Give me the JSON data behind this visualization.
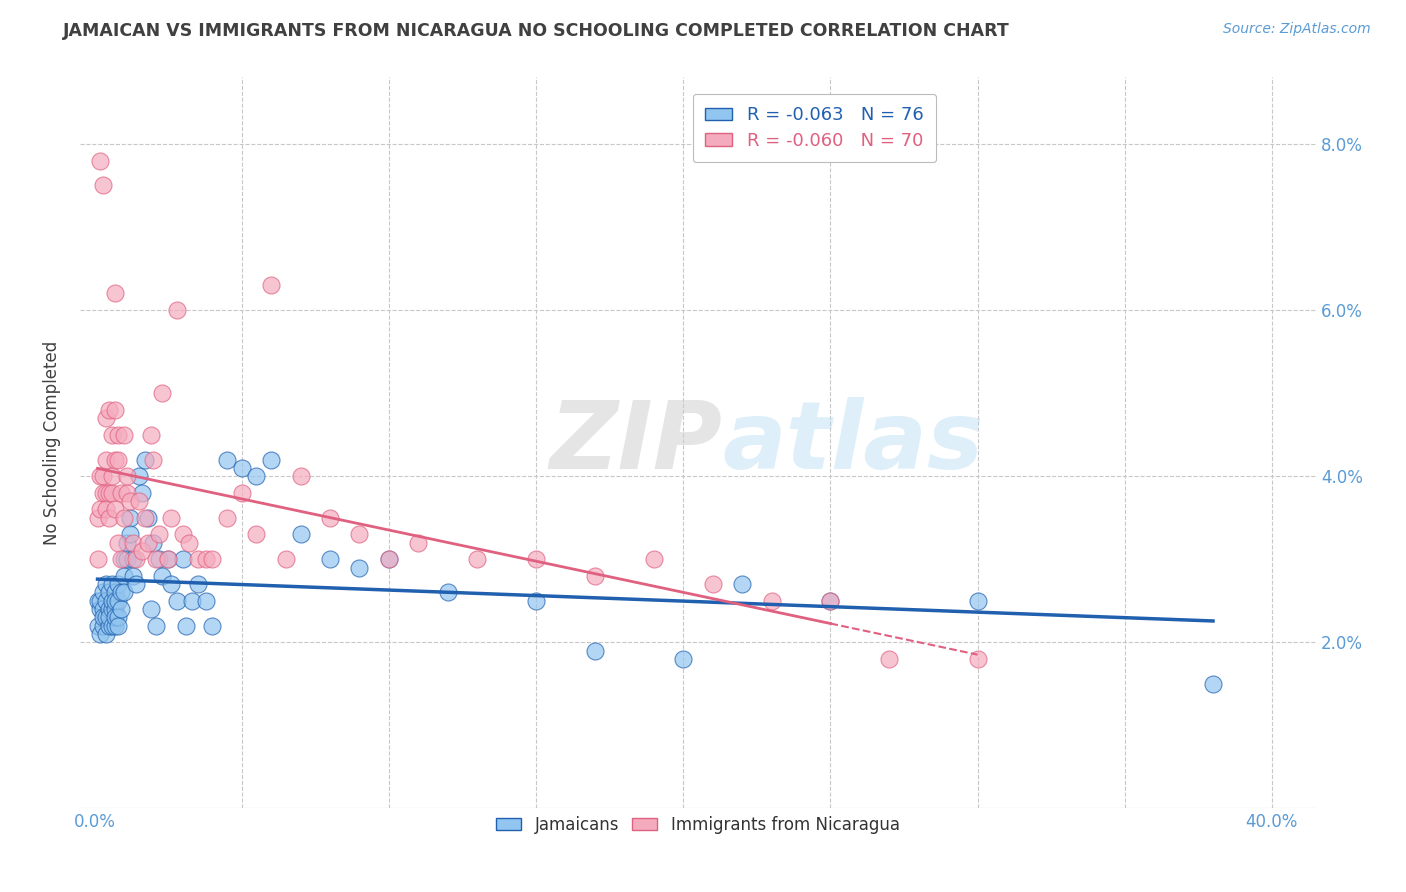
{
  "title": "JAMAICAN VS IMMIGRANTS FROM NICARAGUA NO SCHOOLING COMPLETED CORRELATION CHART",
  "source": "Source: ZipAtlas.com",
  "xlabel_ticks": [
    0.0,
    0.05,
    0.1,
    0.15,
    0.2,
    0.25,
    0.3,
    0.35,
    0.4
  ],
  "xlabel_labels_show": [
    "0.0%",
    "",
    "",
    "",
    "",
    "",
    "",
    "",
    "40.0%"
  ],
  "ylabel": "No Schooling Completed",
  "ylabel_labels_right": [
    "2.0%",
    "4.0%",
    "6.0%",
    "8.0%"
  ],
  "ylim": [
    0.0,
    0.088
  ],
  "xlim": [
    -0.005,
    0.415
  ],
  "watermark": "ZIPatlas",
  "legend_blue_R": "-0.063",
  "legend_blue_N": "76",
  "legend_pink_R": "-0.060",
  "legend_pink_N": "70",
  "blue_color": "#92C5F0",
  "pink_color": "#F5ABBE",
  "blue_line_color": "#2060AE",
  "pink_line_color": "#E06080",
  "grid_color": "#C8C8C8",
  "title_color": "#404040",
  "axis_label_color": "#5B9BD5",
  "blue_x": [
    0.001,
    0.001,
    0.002,
    0.002,
    0.002,
    0.003,
    0.003,
    0.003,
    0.003,
    0.004,
    0.004,
    0.004,
    0.004,
    0.005,
    0.005,
    0.005,
    0.005,
    0.006,
    0.006,
    0.006,
    0.006,
    0.007,
    0.007,
    0.007,
    0.007,
    0.007,
    0.008,
    0.008,
    0.008,
    0.008,
    0.009,
    0.009,
    0.01,
    0.01,
    0.01,
    0.011,
    0.011,
    0.012,
    0.012,
    0.013,
    0.013,
    0.014,
    0.015,
    0.016,
    0.017,
    0.018,
    0.019,
    0.02,
    0.021,
    0.022,
    0.023,
    0.025,
    0.026,
    0.028,
    0.03,
    0.031,
    0.033,
    0.035,
    0.038,
    0.04,
    0.045,
    0.05,
    0.055,
    0.06,
    0.07,
    0.08,
    0.09,
    0.1,
    0.12,
    0.15,
    0.17,
    0.2,
    0.22,
    0.25,
    0.3,
    0.38
  ],
  "blue_y": [
    0.025,
    0.022,
    0.024,
    0.021,
    0.025,
    0.022,
    0.024,
    0.026,
    0.023,
    0.021,
    0.023,
    0.025,
    0.027,
    0.024,
    0.022,
    0.026,
    0.023,
    0.022,
    0.024,
    0.025,
    0.027,
    0.024,
    0.022,
    0.026,
    0.023,
    0.025,
    0.025,
    0.023,
    0.027,
    0.022,
    0.024,
    0.026,
    0.03,
    0.028,
    0.026,
    0.032,
    0.03,
    0.035,
    0.033,
    0.03,
    0.028,
    0.027,
    0.04,
    0.038,
    0.042,
    0.035,
    0.024,
    0.032,
    0.022,
    0.03,
    0.028,
    0.03,
    0.027,
    0.025,
    0.03,
    0.022,
    0.025,
    0.027,
    0.025,
    0.022,
    0.042,
    0.041,
    0.04,
    0.042,
    0.033,
    0.03,
    0.029,
    0.03,
    0.026,
    0.025,
    0.019,
    0.018,
    0.027,
    0.025,
    0.025,
    0.015
  ],
  "pink_x": [
    0.001,
    0.001,
    0.002,
    0.002,
    0.002,
    0.003,
    0.003,
    0.003,
    0.004,
    0.004,
    0.004,
    0.004,
    0.005,
    0.005,
    0.005,
    0.006,
    0.006,
    0.006,
    0.007,
    0.007,
    0.007,
    0.007,
    0.008,
    0.008,
    0.008,
    0.009,
    0.009,
    0.01,
    0.01,
    0.011,
    0.011,
    0.012,
    0.013,
    0.014,
    0.015,
    0.016,
    0.017,
    0.018,
    0.019,
    0.02,
    0.021,
    0.022,
    0.023,
    0.025,
    0.026,
    0.028,
    0.03,
    0.032,
    0.035,
    0.038,
    0.04,
    0.045,
    0.05,
    0.055,
    0.06,
    0.065,
    0.07,
    0.08,
    0.09,
    0.1,
    0.11,
    0.13,
    0.15,
    0.17,
    0.19,
    0.21,
    0.23,
    0.25,
    0.27,
    0.3
  ],
  "pink_y": [
    0.035,
    0.03,
    0.078,
    0.04,
    0.036,
    0.075,
    0.04,
    0.038,
    0.038,
    0.036,
    0.042,
    0.047,
    0.035,
    0.048,
    0.038,
    0.038,
    0.04,
    0.045,
    0.042,
    0.036,
    0.048,
    0.062,
    0.045,
    0.032,
    0.042,
    0.038,
    0.03,
    0.035,
    0.045,
    0.038,
    0.04,
    0.037,
    0.032,
    0.03,
    0.037,
    0.031,
    0.035,
    0.032,
    0.045,
    0.042,
    0.03,
    0.033,
    0.05,
    0.03,
    0.035,
    0.06,
    0.033,
    0.032,
    0.03,
    0.03,
    0.03,
    0.035,
    0.038,
    0.033,
    0.063,
    0.03,
    0.04,
    0.035,
    0.033,
    0.03,
    0.032,
    0.03,
    0.03,
    0.028,
    0.03,
    0.027,
    0.025,
    0.025,
    0.018,
    0.018
  ]
}
